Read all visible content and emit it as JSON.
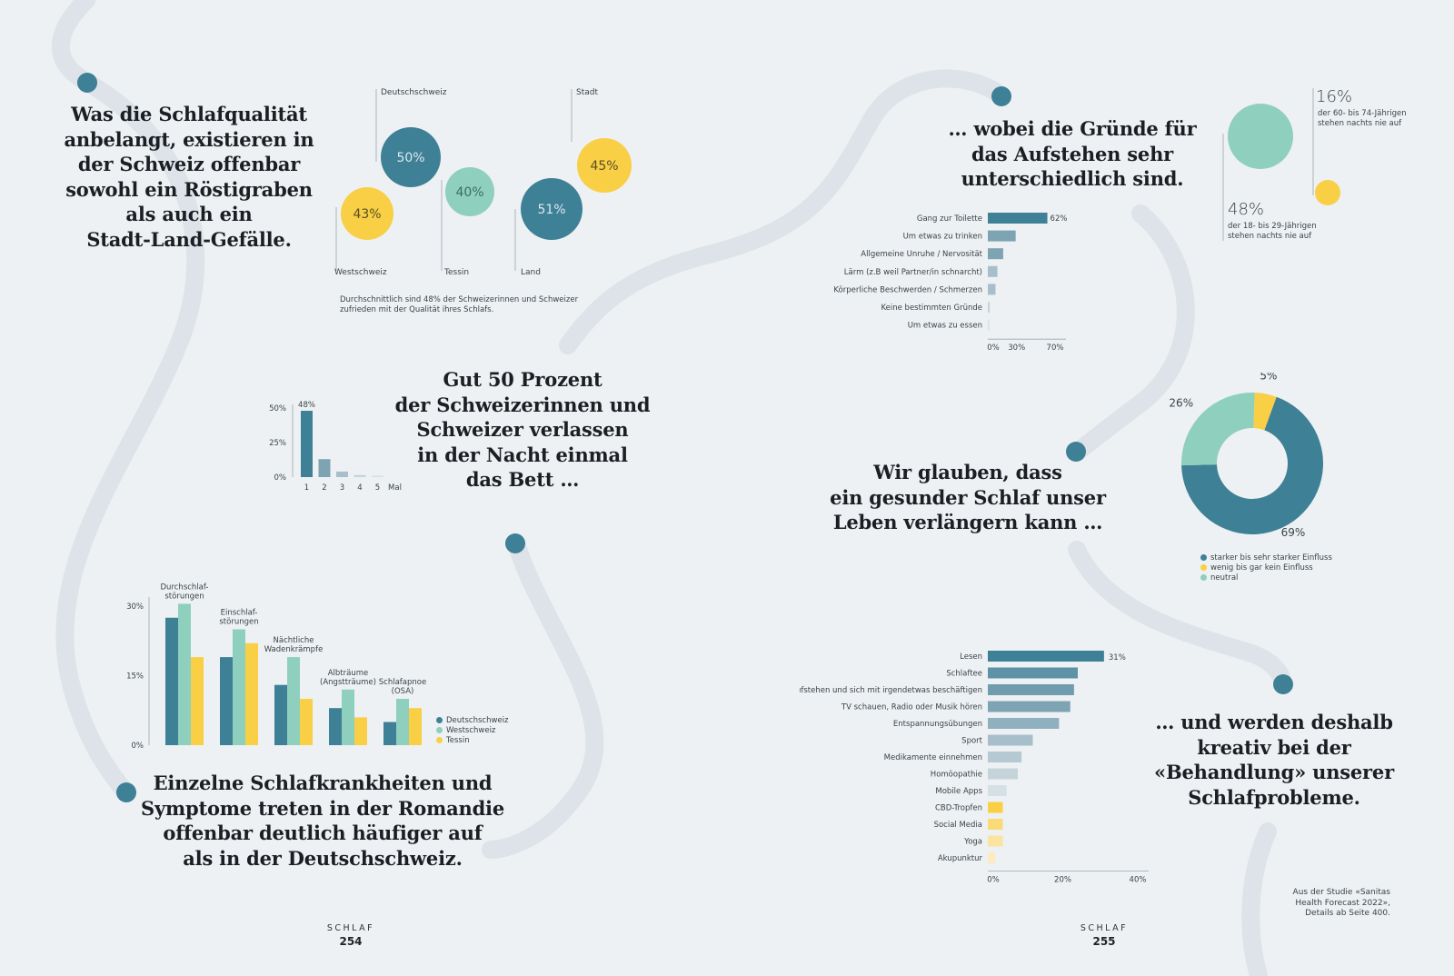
{
  "colors": {
    "teal": "#3e8096",
    "mint": "#8fcfbd",
    "yellow": "#f9cf45",
    "bg": "#edf1f3",
    "path": "#dde3e8",
    "grey1": "#7ea3b3",
    "grey2": "#a6bfcb"
  },
  "headlines": {
    "h1": "Was die Schlafqualität\nanbelangt, existieren in\nder Schweiz offenbar\nsowohl ein Röstigraben\nals auch ein\nStadt-Land-Gefälle.",
    "h2": "Gut 50 Prozent\nder Schweizerinnen und\nSchweizer verlassen\nin der Nacht einmal\ndas Bett …",
    "h3": "Einzelne Schlafkrankheiten und\nSymptome treten in der Romandie\noffenbar deutlich häufiger auf\nals in der Deutschschweiz.",
    "h4": "… wobei die Gründe für\ndas Aufstehen sehr\nunterschiedlich sind.",
    "h5": "Wir glauben, dass\nein gesunder Schlaf unser\nLeben verlängern kann …",
    "h6": "… und werden deshalb\nkreativ bei der\n«Behandlung» unserer\nSchlafprobleme."
  },
  "bubbles": {
    "items": [
      {
        "label": "Deutschschweiz",
        "value": 50,
        "text": "50%",
        "color": "teal"
      },
      {
        "label": "Westschweiz",
        "value": 43,
        "text": "43%",
        "color": "yellow"
      },
      {
        "label": "Tessin",
        "value": 40,
        "text": "40%",
        "color": "mint"
      },
      {
        "label": "Land",
        "value": 51,
        "text": "51%",
        "color": "teal"
      },
      {
        "label": "Stadt",
        "value": 45,
        "text": "45%",
        "color": "yellow"
      }
    ],
    "note": "Durchschnittlich sind 48% der Schweizerinnen und Schweizer\nzufrieden mit der Qualität ihres Schlafs."
  },
  "chart_data": [
    {
      "type": "bar",
      "id": "nights",
      "categories": [
        "1",
        "2",
        "3",
        "4",
        "5"
      ],
      "values": [
        48,
        13,
        4,
        1.5,
        1
      ],
      "xlabel": "Mal",
      "yticks": [
        "50%",
        "25%",
        "0%"
      ],
      "ylim": [
        0,
        50
      ],
      "data_labels": [
        "48%"
      ]
    },
    {
      "type": "bar",
      "id": "symptoms",
      "categories": [
        "Durchschlaf-\nstörungen",
        "Einschlaf-\nstörungen",
        "Nächtliche\nWadenkrämpfe",
        "Albträume\n(Angstträume)",
        "Schlafapnoe\n(OSA)"
      ],
      "series": [
        {
          "name": "Deutschschweiz",
          "values": [
            27.5,
            19,
            13,
            8,
            5
          ],
          "color": "teal"
        },
        {
          "name": "Westschweiz",
          "values": [
            30.5,
            25,
            19,
            12,
            10
          ],
          "color": "mint"
        },
        {
          "name": "Tessin",
          "values": [
            19,
            22,
            10,
            6,
            8
          ],
          "color": "yellow"
        }
      ],
      "yticks": [
        "30%",
        "15%",
        "0%"
      ],
      "ylim": [
        0,
        30
      ]
    },
    {
      "type": "bar",
      "id": "reasons",
      "orientation": "horizontal",
      "categories": [
        "Gang zur Toilette",
        "Um etwas zu trinken",
        "Allgemeine Unruhe / Nervosität",
        "Lärm (z.B weil Partner/in schnarcht)",
        "Körperliche Beschwerden / Schmerzen",
        "Keine bestimmten Gründe",
        "Um etwas zu essen"
      ],
      "values": [
        62,
        29,
        16,
        10,
        8,
        2,
        1.5
      ],
      "data_labels": [
        "62%"
      ],
      "xticks": [
        "0%",
        "30%",
        "70%"
      ],
      "xlim": [
        0,
        70
      ]
    },
    {
      "type": "pie",
      "id": "influence",
      "donut": true,
      "slices": [
        {
          "name": "starker bis sehr starker Einfluss",
          "value": 69,
          "text": "69%",
          "color": "teal"
        },
        {
          "name": "neutral",
          "value": 26,
          "text": "26%",
          "color": "mint"
        },
        {
          "name": "wenig bis gar kein Einfluss",
          "value": 5,
          "text": "5%",
          "color": "yellow"
        }
      ],
      "legend_order": [
        "starker bis sehr starker Einfluss",
        "wenig bis gar kein Einfluss",
        "neutral"
      ]
    },
    {
      "type": "bar",
      "id": "remedies",
      "orientation": "horizontal",
      "categories": [
        "Lesen",
        "Schlaftee",
        "Aufstehen und sich mit irgendetwas beschäftigen",
        "TV schauen, Radio oder Musik hören",
        "Entspannungsübungen",
        "Sport",
        "Medikamente einnehmen",
        "Homöopathie",
        "Mobile Apps",
        "CBD-Tropfen",
        "Social Media",
        "Yoga",
        "Akupunktur"
      ],
      "values": [
        31,
        24,
        23,
        22,
        19,
        12,
        9,
        8,
        5,
        4,
        4,
        4,
        2
      ],
      "data_labels": [
        "31%"
      ],
      "xticks": [
        "0%",
        "20%",
        "40%"
      ],
      "xlim": [
        0,
        40
      ]
    }
  ],
  "age_stats": {
    "big": {
      "text": "48%",
      "caption": "der 18- bis 29-Jährigen\nstehen nachts nie auf"
    },
    "small": {
      "text": "16%",
      "caption": "der 60- bis 74-Jährigen\nstehen nachts nie auf"
    }
  },
  "source_note": "Aus der Studie «Sanitas\nHealth Forecast 2022»,\nDetails ab Seite 400.",
  "footer": {
    "left": {
      "section": "SCHLAF",
      "page": "254"
    },
    "right": {
      "section": "SCHLAF",
      "page": "255"
    }
  }
}
